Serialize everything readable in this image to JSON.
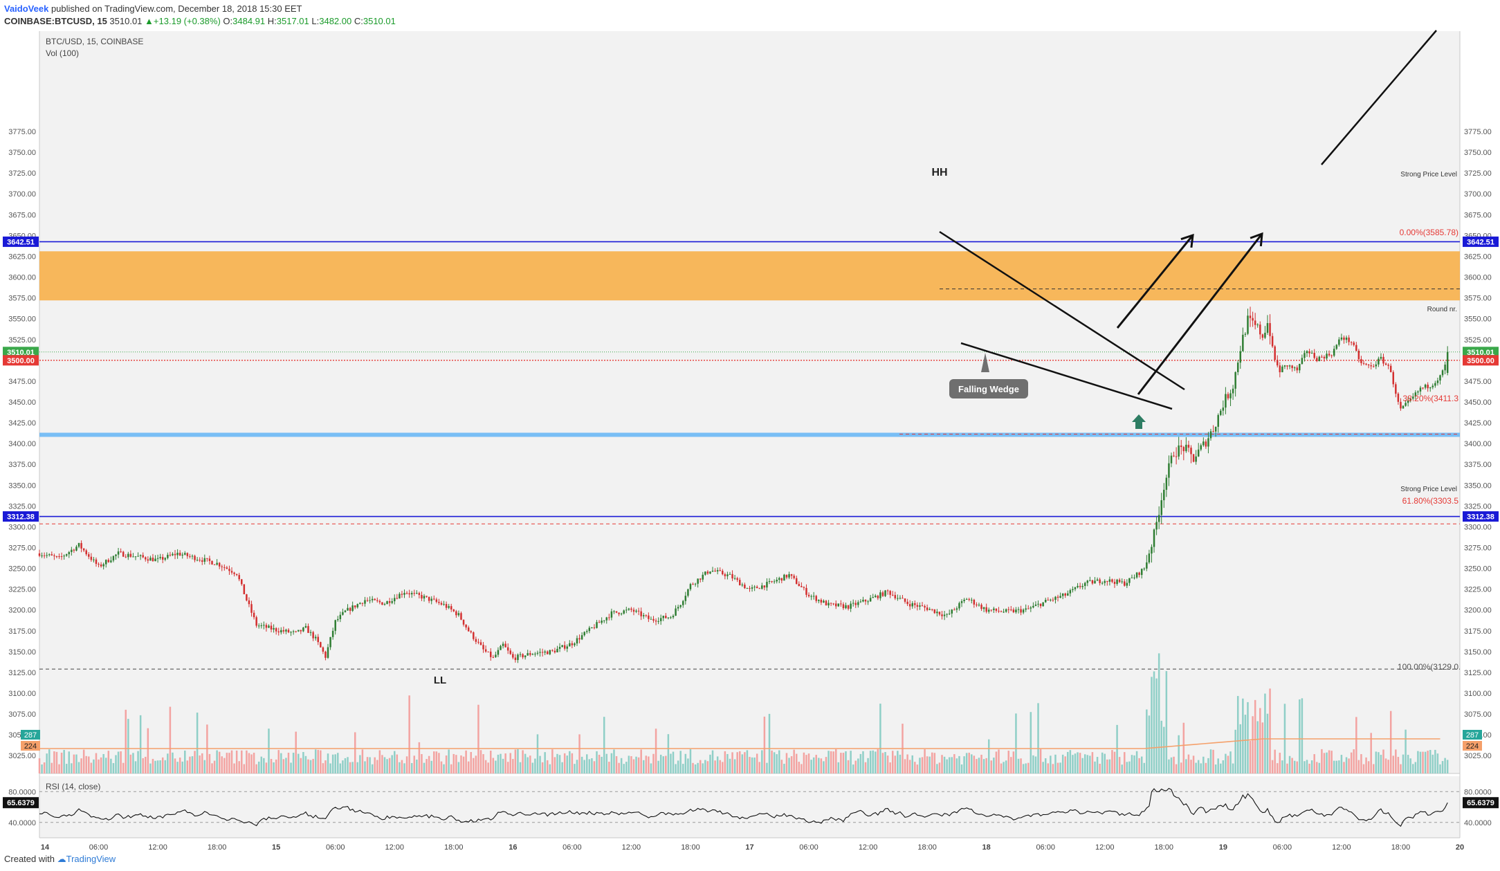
{
  "header": {
    "author": "VaidoVeek",
    "published_text": "published on TradingView.com, December 18, 2018 15:30 EET",
    "symbol": "COINBASE:BTCUSD, 15",
    "last": "3510.01",
    "change": "+13.19 (+0.38%)",
    "open_label": "O:",
    "open": "3484.91",
    "high_label": "H:",
    "high": "3517.01",
    "low_label": "L:",
    "low": "3482.00",
    "close_label": "C:",
    "close": "3510.01"
  },
  "pane": {
    "title": "BTC/USD, 15, COINBASE",
    "vol_label": "Vol (100)",
    "rsi_label": "RSI (14, close)"
  },
  "footer": {
    "created_with": "Created with",
    "brand": "TradingView"
  },
  "colors": {
    "up": "#2e7d32",
    "down": "#d32f2f",
    "vol_up": "#8fcfc7",
    "vol_down": "#f3a3a1",
    "resistance_zone": "#f7b04a",
    "support_zone": "#64b5f6",
    "level_line": "#1a1ad6",
    "round_line": "#e53935",
    "fib_red": "#e53935",
    "arrow_green": "#2e7d63",
    "vol_ma": "#f5a06a"
  },
  "chart_data": {
    "type": "candlestick",
    "price_axis_ticks": [
      3025,
      3050,
      3075,
      3100,
      3125,
      3150,
      3175,
      3200,
      3225,
      3250,
      3275,
      3300,
      3325,
      3350,
      3375,
      3400,
      3425,
      3450,
      3475,
      3500,
      3525,
      3550,
      3575,
      3600,
      3625,
      3650,
      3675,
      3700,
      3725,
      3750,
      3775
    ],
    "price_axis_range": [
      3018,
      3793
    ],
    "time_axis_labels": [
      "14",
      "06:00",
      "12:00",
      "18:00",
      "15",
      "06:00",
      "12:00",
      "18:00",
      "16",
      "06:00",
      "12:00",
      "18:00",
      "17",
      "06:00",
      "12:00",
      "18:00",
      "18",
      "06:00",
      "12:00",
      "18:00",
      "19",
      "06:00",
      "12:00",
      "18:00",
      "20"
    ],
    "time_axis_span_hours": [
      0,
      144
    ],
    "price_path": [
      [
        0,
        3268
      ],
      [
        2,
        3262
      ],
      [
        4,
        3278
      ],
      [
        6,
        3252
      ],
      [
        8,
        3268
      ],
      [
        10,
        3264
      ],
      [
        12,
        3260
      ],
      [
        14,
        3268
      ],
      [
        16,
        3262
      ],
      [
        18,
        3256
      ],
      [
        20,
        3244
      ],
      [
        21,
        3212
      ],
      [
        22,
        3182
      ],
      [
        24,
        3176
      ],
      [
        26,
        3172
      ],
      [
        27,
        3178
      ],
      [
        28,
        3165
      ],
      [
        29,
        3144
      ],
      [
        30,
        3186
      ],
      [
        31,
        3198
      ],
      [
        33,
        3212
      ],
      [
        35,
        3208
      ],
      [
        37,
        3222
      ],
      [
        39,
        3215
      ],
      [
        41,
        3206
      ],
      [
        42.5,
        3194
      ],
      [
        43.5,
        3175
      ],
      [
        45,
        3152
      ],
      [
        46,
        3142
      ],
      [
        47,
        3158
      ],
      [
        48,
        3142
      ],
      [
        50,
        3148
      ],
      [
        52,
        3150
      ],
      [
        54,
        3160
      ],
      [
        56,
        3178
      ],
      [
        58,
        3196
      ],
      [
        60,
        3200
      ],
      [
        62,
        3188
      ],
      [
        64,
        3192
      ],
      [
        65,
        3208
      ],
      [
        66,
        3230
      ],
      [
        68,
        3248
      ],
      [
        70,
        3241
      ],
      [
        72,
        3224
      ],
      [
        74,
        3232
      ],
      [
        76,
        3242
      ],
      [
        78,
        3218
      ],
      [
        80,
        3206
      ],
      [
        82,
        3204
      ],
      [
        84,
        3212
      ],
      [
        86,
        3222
      ],
      [
        88,
        3208
      ],
      [
        90,
        3202
      ],
      [
        92,
        3193
      ],
      [
        94,
        3214
      ],
      [
        96,
        3200
      ],
      [
        98,
        3198
      ],
      [
        100,
        3200
      ],
      [
        102,
        3210
      ],
      [
        104,
        3218
      ],
      [
        106,
        3232
      ],
      [
        108,
        3236
      ],
      [
        110,
        3232
      ],
      [
        111,
        3240
      ],
      [
        112,
        3250
      ],
      [
        113,
        3290
      ],
      [
        114,
        3350
      ],
      [
        115,
        3390
      ],
      [
        116,
        3395
      ],
      [
        117,
        3382
      ],
      [
        118,
        3398
      ],
      [
        119,
        3418
      ],
      [
        120,
        3448
      ],
      [
        121,
        3470
      ],
      [
        121.8,
        3518
      ],
      [
        122.5,
        3548
      ],
      [
        123.5,
        3538
      ],
      [
        124,
        3530
      ],
      [
        124.6,
        3548
      ],
      [
        125,
        3510
      ],
      [
        125.6,
        3488
      ],
      [
        126.5,
        3494
      ],
      [
        127.5,
        3488
      ],
      [
        128.5,
        3512
      ],
      [
        129.5,
        3502
      ],
      [
        131,
        3508
      ],
      [
        132,
        3528
      ],
      [
        133,
        3522
      ],
      [
        134,
        3496
      ],
      [
        135,
        3492
      ],
      [
        136,
        3502
      ],
      [
        137,
        3488
      ],
      [
        137.5,
        3458
      ],
      [
        138,
        3440
      ],
      [
        139,
        3452
      ],
      [
        140,
        3466
      ],
      [
        141,
        3470
      ],
      [
        142,
        3480
      ],
      [
        142.6,
        3496
      ],
      [
        142.9,
        3510
      ]
    ],
    "volume_ma_level": "≈ 224 rising to ≈ 260",
    "price_labels": {
      "strong_level_top": "3642.51",
      "strong_level_bottom": "3312.38",
      "last_price": "3510.01",
      "round_nr": "3500.00",
      "volume_last": "287",
      "volume_ma": "224",
      "rsi_value": "65.6379"
    },
    "horizontal_levels": [
      {
        "price": 3642.51,
        "label": "Strong Price Level",
        "style": "solid-blue"
      },
      {
        "price": 3312.38,
        "label": "Strong Price Level",
        "style": "solid-blue"
      },
      {
        "price": 3500.0,
        "label": "Round nr.",
        "style": "dotted-red"
      },
      {
        "price": 3510.01,
        "style": "dotted-green"
      }
    ],
    "zones": [
      {
        "name": "resistance",
        "from": 3572,
        "to": 3631
      },
      {
        "name": "support",
        "from": 3408,
        "to": 3413
      }
    ],
    "fib_levels": [
      {
        "ratio": "0.00%",
        "price": "3585.78",
        "text": "0.00%(3585.78)"
      },
      {
        "ratio": "38.20%",
        "price": "3411.3",
        "text": "38.20%(3411.3"
      },
      {
        "ratio": "61.80%",
        "price": "3303.5",
        "text": "61.80%(3303.5"
      },
      {
        "ratio": "100.00%",
        "price": "3129.0",
        "text": "100.00%(3129.0"
      }
    ],
    "annotations": {
      "hh": "HH",
      "ll": "LL",
      "pattern": "Falling Wedge"
    },
    "rsi": {
      "name": "RSI (14, close)",
      "ticks": [
        "80.0000",
        "40.0000"
      ],
      "range": [
        20,
        100
      ],
      "last": 65.6379
    }
  }
}
